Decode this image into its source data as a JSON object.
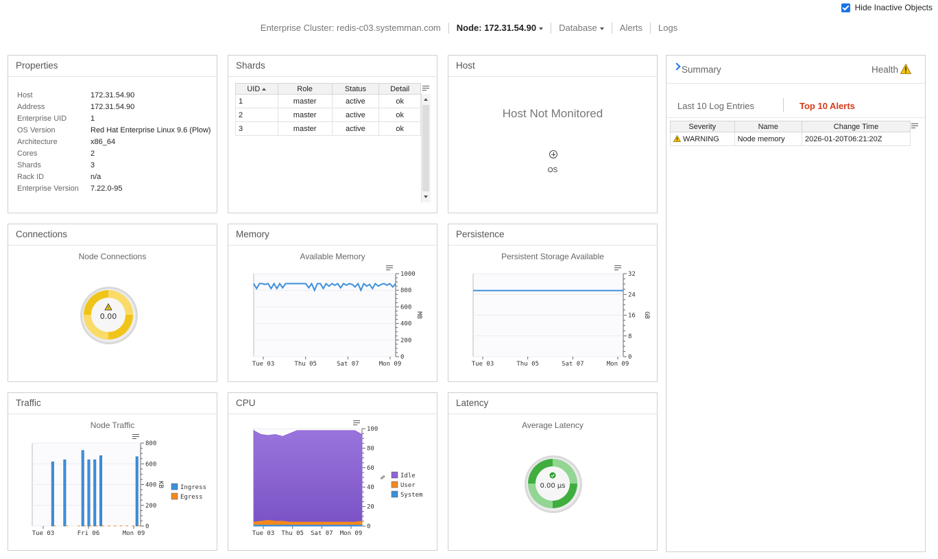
{
  "top": {
    "hide_inactive_label": "Hide Inactive Objects",
    "hide_inactive_checked": true
  },
  "breadcrumb": {
    "cluster": "Enterprise Cluster: redis-c03.systemman.com",
    "node": "Node: 172.31.54.90",
    "database": "Database",
    "alerts": "Alerts",
    "logs": "Logs"
  },
  "properties": {
    "title": "Properties",
    "rows": [
      {
        "k": "Host",
        "v": "172.31.54.90"
      },
      {
        "k": "Address",
        "v": "172.31.54.90"
      },
      {
        "k": "Enterprise UID",
        "v": "1"
      },
      {
        "k": "OS Version",
        "v": "Red Hat Enterprise Linux 9.6 (Plow)"
      },
      {
        "k": "Architecture",
        "v": "x86_64"
      },
      {
        "k": "Cores",
        "v": "2"
      },
      {
        "k": "Shards",
        "v": "3"
      },
      {
        "k": "Rack ID",
        "v": "n/a"
      },
      {
        "k": "Enterprise Version",
        "v": "7.22.0-95"
      }
    ]
  },
  "shards": {
    "title": "Shards",
    "columns": [
      "UID",
      "Role",
      "Status",
      "Detail"
    ],
    "rows": [
      {
        "uid": "1",
        "role": "master",
        "status": "active",
        "detail": "ok"
      },
      {
        "uid": "2",
        "role": "master",
        "status": "active",
        "detail": "ok"
      },
      {
        "uid": "3",
        "role": "master",
        "status": "active",
        "detail": "ok"
      }
    ]
  },
  "host": {
    "title": "Host",
    "message": "Host Not Monitored",
    "os_label": "OS"
  },
  "connections": {
    "title": "Connections",
    "subtitle": "Node Connections",
    "gauge_value": "0.00",
    "gauge_color": "#f0c419"
  },
  "memory": {
    "title": "Memory",
    "subtitle": "Available Memory"
  },
  "persistence": {
    "title": "Persistence",
    "subtitle": "Persistent Storage Available"
  },
  "traffic": {
    "title": "Traffic",
    "subtitle": "Node Traffic"
  },
  "cpu": {
    "title": "CPU",
    "subtitle": ""
  },
  "latency": {
    "title": "Latency",
    "subtitle": "Average Latency",
    "gauge_value": "0.00 µs",
    "gauge_color": "#3fae3f"
  },
  "summary": {
    "title": "Summary",
    "health_label": "Health",
    "tab_logs": "Last 10 Log Entries",
    "tab_alerts": "Top 10 Alerts",
    "alert_columns": [
      "Severity",
      "Name",
      "Change Time"
    ],
    "alerts": [
      {
        "severity": "WARNING",
        "name": "Node memory",
        "time": "2026-01-20T06:21:20Z"
      }
    ]
  },
  "chart_data": [
    {
      "type": "line",
      "title": "Available Memory",
      "ylabel": "MB",
      "ylim": [
        0,
        1000
      ],
      "yticks": [
        "0",
        "200",
        "400",
        "600",
        "800",
        "1000"
      ],
      "xticks": [
        "Tue 03",
        "Thu 05",
        "Sat 07",
        "Mon 09"
      ],
      "color": "#3d8fdb",
      "values": [
        880,
        820,
        880,
        880,
        870,
        880,
        820,
        880,
        820,
        880,
        830,
        880,
        880,
        880,
        880,
        880,
        880,
        880,
        880,
        830,
        880,
        800,
        880,
        880,
        820,
        880,
        850,
        880,
        860,
        880,
        830,
        880,
        860,
        880,
        870,
        840,
        880,
        800,
        880,
        850,
        870,
        820,
        880,
        850,
        870,
        880,
        860,
        880,
        840,
        880
      ]
    },
    {
      "type": "line",
      "title": "Persistent Storage Available",
      "ylabel": "GB",
      "ylim": [
        0,
        32
      ],
      "yticks": [
        "0",
        "8",
        "16",
        "24",
        "32"
      ],
      "xticks": [
        "Tue 03",
        "Thu 05",
        "Sat 07",
        "Mon 09"
      ],
      "color": "#3d8fdb",
      "values": [
        25.5,
        25.5,
        25.5,
        25.5,
        25.5,
        25.5,
        25.5,
        25.5,
        25.5,
        25.5
      ]
    },
    {
      "type": "bar",
      "title": "Node Traffic",
      "ylabel": "KB",
      "ylim": [
        0,
        800
      ],
      "yticks": [
        "0",
        "200",
        "400",
        "600",
        "800"
      ],
      "xticks": [
        "Tue 03",
        "Fri 06",
        "Mon 09"
      ],
      "series": [
        {
          "name": "Ingress",
          "color": "#3d8fdb",
          "values": [
            0,
            0,
            0,
            620,
            0,
            640,
            0,
            0,
            730,
            640,
            640,
            680,
            0,
            0,
            0,
            0,
            0,
            670
          ]
        },
        {
          "name": "Egress",
          "color": "#f28a1e",
          "values": [
            0,
            0,
            0,
            5,
            0,
            5,
            0,
            5,
            5,
            5,
            5,
            5,
            5,
            5,
            5,
            5,
            5,
            5
          ]
        }
      ]
    },
    {
      "type": "area",
      "title": "",
      "ylabel": "%",
      "ylim": [
        0,
        100
      ],
      "yticks": [
        "0",
        "20",
        "40",
        "60",
        "80",
        "100"
      ],
      "xticks": [
        "Tue 03",
        "Thu 05",
        "Sat 07",
        "Mon 09"
      ],
      "series": [
        {
          "name": "Idle",
          "color": "#8f64d4",
          "values": [
            98,
            94,
            93,
            94,
            92,
            95,
            98,
            98,
            98,
            98,
            98,
            98,
            98,
            98,
            98,
            94
          ]
        },
        {
          "name": "User",
          "color": "#f28a1e",
          "values": [
            4,
            5,
            6,
            5,
            5,
            4,
            4,
            4,
            4,
            4,
            4,
            4,
            4,
            4,
            4,
            5
          ]
        },
        {
          "name": "System",
          "color": "#3d8fdb",
          "values": [
            1,
            1,
            1,
            1,
            1,
            1,
            1,
            1,
            1,
            1,
            1,
            1,
            1,
            1,
            1,
            1
          ]
        }
      ]
    }
  ]
}
